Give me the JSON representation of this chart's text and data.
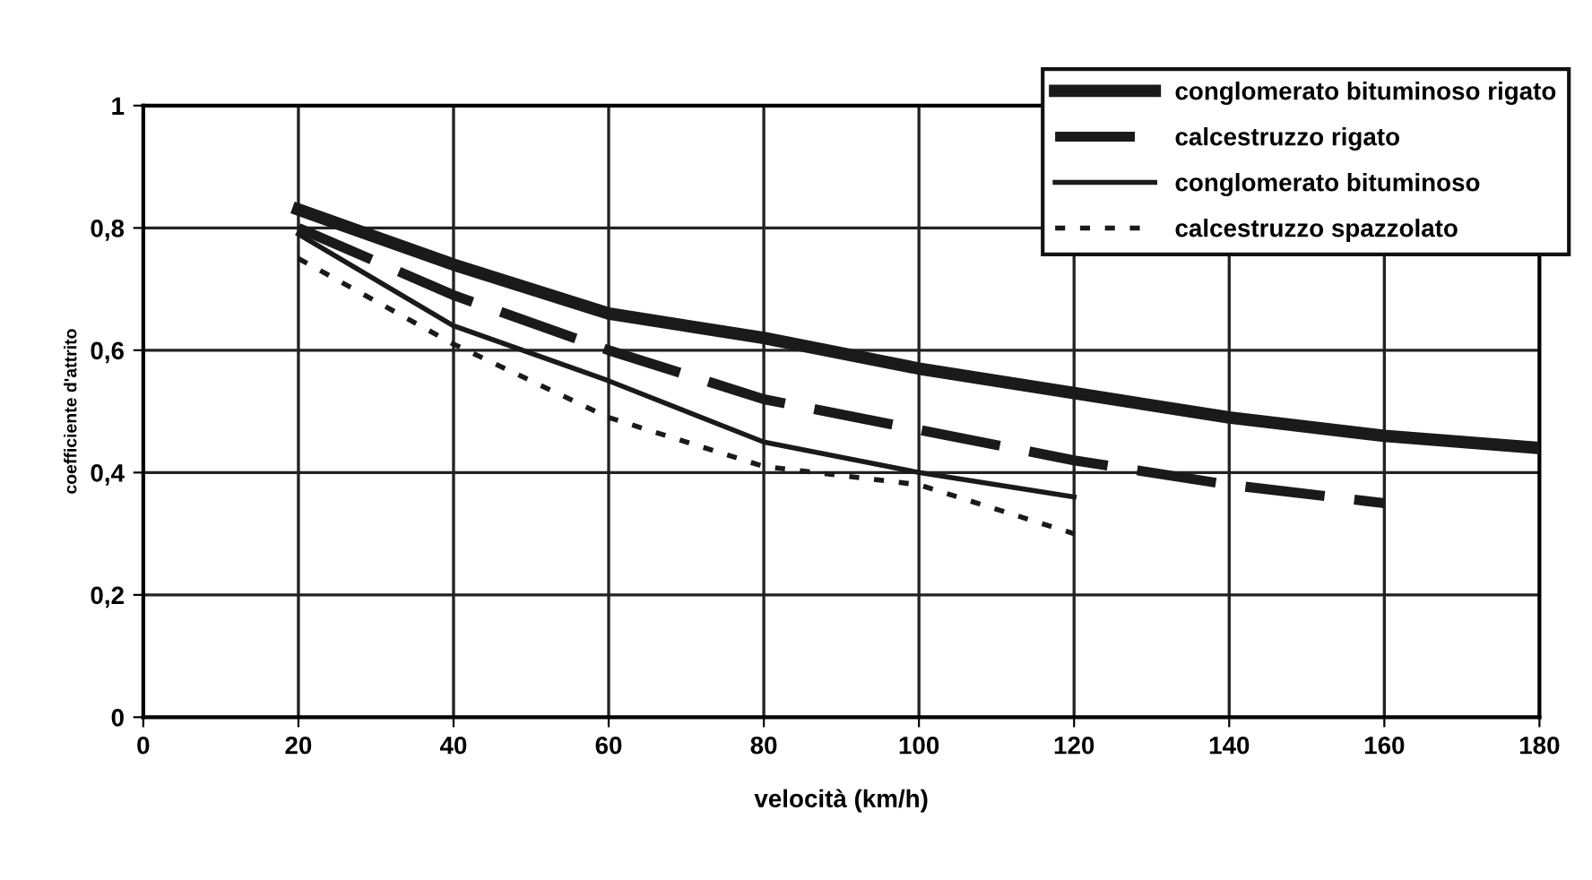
{
  "chart_data": {
    "type": "line",
    "xlabel": "velocità (km/h)",
    "ylabel": "coefficiente d'attrito",
    "x": [
      20,
      40,
      60,
      80,
      100,
      120,
      140,
      160,
      180
    ],
    "xlim": [
      0,
      180
    ],
    "xticks": [
      0,
      20,
      40,
      60,
      80,
      100,
      120,
      140,
      160,
      180
    ],
    "ylim": [
      0,
      1
    ],
    "yticks": [
      {
        "value": 0,
        "label": "0"
      },
      {
        "value": 0.2,
        "label": "0,2"
      },
      {
        "value": 0.4,
        "label": "0,4"
      },
      {
        "value": 0.6,
        "label": "0,6"
      },
      {
        "value": 0.8,
        "label": "0,8"
      },
      {
        "value": 1,
        "label": "1"
      }
    ],
    "grid": true,
    "legend": "top right",
    "marker": "none",
    "series": [
      {
        "name": "conglomerato bituminoso rigato",
        "color": "#1a1a1a",
        "line_style": "solid",
        "values": [
          0.83,
          0.74,
          0.66,
          0.62,
          0.57,
          0.53,
          0.49,
          0.46,
          0.44
        ]
      },
      {
        "name": "calcestruzzo rigato",
        "color": "#1a1a1a",
        "line_style": "dashed",
        "values": [
          0.8,
          0.69,
          0.6,
          0.52,
          0.47,
          0.42,
          0.38,
          0.35,
          null
        ]
      },
      {
        "name": "conglomerato bituminoso",
        "color": "#1a1a1a",
        "line_style": "solid",
        "values": [
          0.79,
          0.64,
          0.55,
          0.45,
          0.4,
          0.36,
          null,
          null,
          null
        ]
      },
      {
        "name": "calcestruzzo spazzolato",
        "color": "#1a1a1a",
        "line_style": "dotted",
        "values": [
          0.75,
          0.61,
          0.49,
          0.41,
          0.38,
          0.3,
          null,
          null,
          null
        ]
      }
    ]
  }
}
